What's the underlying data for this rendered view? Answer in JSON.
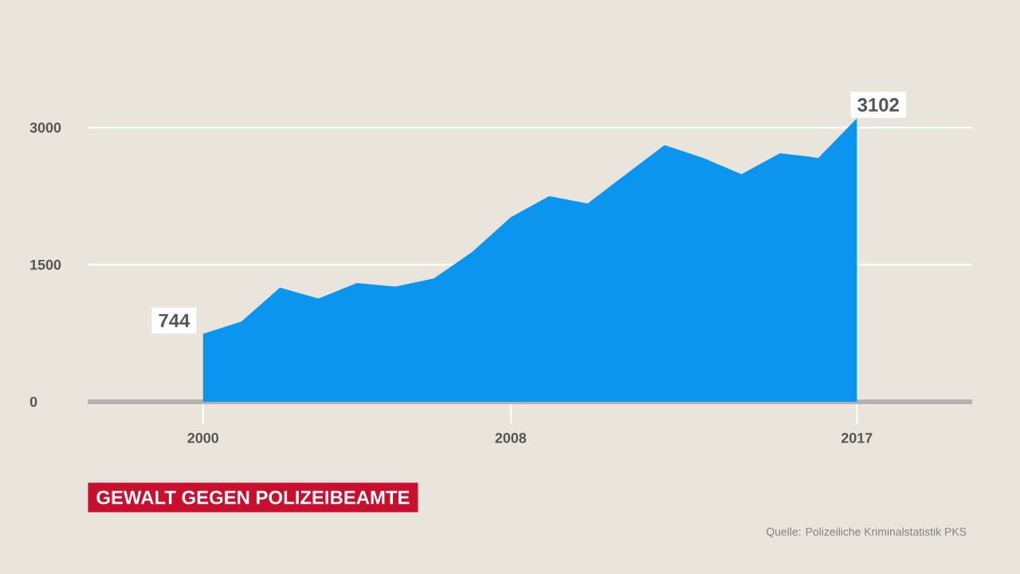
{
  "chart_data": {
    "type": "area",
    "title": "GEWALT GEGEN POLIZEIBEAMTE",
    "annotations": [
      "Quelle: Polizeiliche Kriminalstatistik PKS"
    ],
    "x": [
      2000,
      2001,
      2002,
      2003,
      2004,
      2005,
      2006,
      2007,
      2008,
      2009,
      2010,
      2011,
      2012,
      2013,
      2014,
      2015,
      2016,
      2017
    ],
    "values": [
      744,
      880,
      1250,
      1130,
      1300,
      1260,
      1350,
      1640,
      2020,
      2250,
      2170,
      2490,
      2810,
      2670,
      2490,
      2720,
      2670,
      3102
    ],
    "value_labels": [
      "744",
      null,
      null,
      null,
      null,
      null,
      null,
      null,
      null,
      null,
      null,
      null,
      null,
      null,
      null,
      null,
      null,
      "3102"
    ],
    "color": "#0c95ee",
    "xlim": [
      1997,
      2020
    ],
    "ylim": [
      0,
      3350
    ],
    "xticks": [
      {
        "value": 2000,
        "label": "2000"
      },
      {
        "value": 2008,
        "label": "2008"
      },
      {
        "value": 2017,
        "label": "2017"
      }
    ],
    "yticks": [
      {
        "value": 0,
        "label": "0"
      },
      {
        "value": 1500,
        "label": "1500"
      },
      {
        "value": 3000,
        "label": "3000"
      }
    ],
    "grid": "y"
  }
}
